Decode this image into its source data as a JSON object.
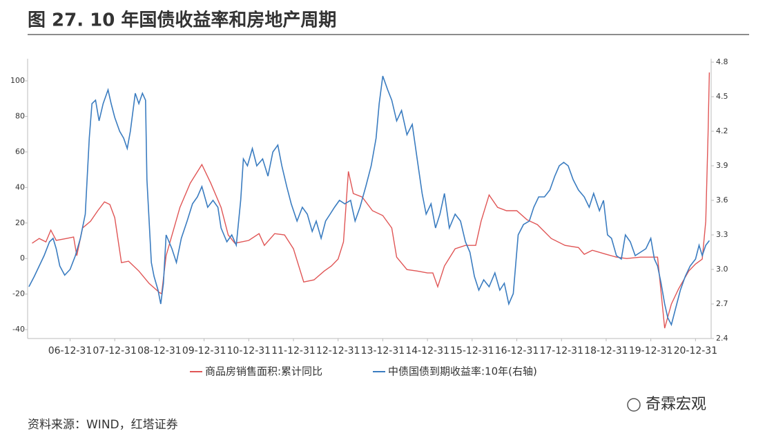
{
  "title": "图 27. 10 年国债收益率和房地产周期",
  "source": "资料来源：WIND，红塔证券",
  "watermark": "奇霖宏观",
  "chart_data": {
    "type": "line",
    "xlim": [
      2006.05,
      2021.35
    ],
    "xticks": [
      {
        "value": 2007.0,
        "label": "06-12-31"
      },
      {
        "value": 2008.0,
        "label": "07-12-31"
      },
      {
        "value": 2009.0,
        "label": "08-12-31"
      },
      {
        "value": 2010.0,
        "label": "09-12-31"
      },
      {
        "value": 2011.0,
        "label": "10-12-31"
      },
      {
        "value": 2012.0,
        "label": "11-12-31"
      },
      {
        "value": 2013.0,
        "label": "12-12-31"
      },
      {
        "value": 2014.0,
        "label": "13-12-31"
      },
      {
        "value": 2015.0,
        "label": "14-12-31"
      },
      {
        "value": 2016.0,
        "label": "15-12-31"
      },
      {
        "value": 2017.0,
        "label": "16-12-31"
      },
      {
        "value": 2018.0,
        "label": "17-12-31"
      },
      {
        "value": 2019.0,
        "label": "18-12-31"
      },
      {
        "value": 2020.0,
        "label": "19-12-31"
      },
      {
        "value": 2021.0,
        "label": "20-12-31"
      }
    ],
    "ylim": [
      -45,
      110.5
    ],
    "yticks": [
      -40,
      -20,
      0,
      20,
      40,
      60,
      80,
      100
    ],
    "y2lim": [
      2.4,
      4.8
    ],
    "y2ticks": [
      2.4,
      2.7,
      {
        "value": 3,
        "label": "3.0"
      },
      3.3,
      3.6,
      3.9,
      4.2,
      4.5,
      4.8
    ],
    "series": [
      {
        "name": "商品房销售面积:累计同比",
        "color": "#e05555",
        "x": [
          2006.15,
          2006.31,
          2006.46,
          2006.57,
          2006.69,
          2006.92,
          2007.08,
          2007.15,
          2007.28,
          2007.46,
          2007.62,
          2007.77,
          2007.89,
          2008.0,
          2008.15,
          2008.31,
          2008.54,
          2008.77,
          2009.0,
          2009.05,
          2009.15,
          2009.46,
          2009.69,
          2009.95,
          2010.15,
          2010.38,
          2010.54,
          2010.69,
          2011.0,
          2011.23,
          2011.35,
          2011.58,
          2011.8,
          2012.0,
          2012.23,
          2012.46,
          2012.69,
          2012.85,
          2013.0,
          2013.12,
          2013.23,
          2013.34,
          2013.54,
          2013.77,
          2014.0,
          2014.2,
          2014.31,
          2014.54,
          2014.77,
          2015.0,
          2015.12,
          2015.23,
          2015.38,
          2015.62,
          2015.85,
          2016.08,
          2016.2,
          2016.38,
          2016.57,
          2016.77,
          2017.0,
          2017.23,
          2017.46,
          2017.77,
          2018.08,
          2018.38,
          2018.51,
          2018.69,
          2019.0,
          2019.23,
          2019.46,
          2019.77,
          2020.15,
          2020.31,
          2020.46,
          2020.62,
          2020.85,
          2021.0,
          2021.15,
          2021.23,
          2021.28,
          2021.31
        ],
        "values": [
          8.6,
          11.3,
          9.4,
          16.0,
          10.2,
          11.3,
          12.1,
          1.6,
          17.2,
          21.0,
          26.9,
          31.9,
          30.4,
          23.0,
          -2.3,
          -1.5,
          -7.0,
          -14.0,
          -19.1,
          -19.8,
          1.6,
          28.8,
          42.4,
          52.9,
          42.4,
          28.8,
          13.3,
          8.6,
          10.2,
          14.0,
          7.4,
          14.0,
          13.3,
          5.5,
          -13.2,
          -12.0,
          -7.0,
          -4.2,
          -0.3,
          9.4,
          49.0,
          36.6,
          34.6,
          26.9,
          24.2,
          17.2,
          0.8,
          -6.2,
          -7.0,
          -8.1,
          -8.1,
          -15.9,
          -4.2,
          5.5,
          7.4,
          7.4,
          21.0,
          35.8,
          28.8,
          26.9,
          26.9,
          21.8,
          19.1,
          11.3,
          7.4,
          6.2,
          2.4,
          4.7,
          2.4,
          0.8,
          0.0,
          0.8,
          0.8,
          -39.2,
          -25.6,
          -17.1,
          -7.0,
          -3.1,
          -0.3,
          21.0,
          69.7,
          104.7
        ]
      },
      {
        "name": "中债国债到期收益率:10年(右轴)",
        "color": "#3a7cc0",
        "axis": "y2",
        "x": [
          2006.08,
          2006.2,
          2006.31,
          2006.42,
          2006.54,
          2006.62,
          2006.69,
          2006.77,
          2006.88,
          2007.0,
          2007.12,
          2007.23,
          2007.34,
          2007.43,
          2007.49,
          2007.57,
          2007.65,
          2007.74,
          2007.85,
          2007.92,
          2008.0,
          2008.11,
          2008.2,
          2008.28,
          2008.35,
          2008.46,
          2008.54,
          2008.62,
          2008.69,
          2008.72,
          2008.82,
          2008.88,
          2008.97,
          2009.03,
          2009.09,
          2009.15,
          2009.28,
          2009.38,
          2009.49,
          2009.62,
          2009.74,
          2009.85,
          2009.95,
          2010.08,
          2010.2,
          2010.31,
          2010.38,
          2010.51,
          2010.62,
          2010.72,
          2010.82,
          2010.88,
          2010.97,
          2011.08,
          2011.18,
          2011.31,
          2011.43,
          2011.54,
          2011.65,
          2011.74,
          2011.85,
          2011.95,
          2012.08,
          2012.2,
          2012.31,
          2012.42,
          2012.51,
          2012.62,
          2012.72,
          2012.82,
          2012.92,
          2013.03,
          2013.15,
          2013.28,
          2013.38,
          2013.49,
          2013.62,
          2013.74,
          2013.85,
          2013.92,
          2014.0,
          2014.11,
          2014.2,
          2014.31,
          2014.42,
          2014.54,
          2014.66,
          2014.77,
          2014.88,
          2014.97,
          2015.08,
          2015.18,
          2015.28,
          2015.38,
          2015.49,
          2015.62,
          2015.74,
          2015.85,
          2015.95,
          2016.05,
          2016.15,
          2016.26,
          2016.38,
          2016.51,
          2016.62,
          2016.72,
          2016.82,
          2016.92,
          2017.03,
          2017.15,
          2017.28,
          2017.38,
          2017.49,
          2017.62,
          2017.74,
          2017.85,
          2017.95,
          2018.05,
          2018.15,
          2018.26,
          2018.38,
          2018.51,
          2018.62,
          2018.72,
          2018.85,
          2018.94,
          2019.03,
          2019.12,
          2019.23,
          2019.34,
          2019.43,
          2019.54,
          2019.65,
          2019.77,
          2019.89,
          2020.0,
          2020.08,
          2020.15,
          2020.23,
          2020.31,
          2020.38,
          2020.46,
          2020.54,
          2020.66,
          2020.77,
          2020.88,
          2021.0,
          2021.08,
          2021.15,
          2021.23,
          2021.31
        ],
        "values": [
          2.85,
          2.94,
          3.03,
          3.12,
          3.24,
          3.27,
          3.18,
          3.03,
          2.95,
          3.0,
          3.12,
          3.27,
          3.48,
          4.14,
          4.44,
          4.47,
          4.29,
          4.44,
          4.56,
          4.44,
          4.32,
          4.2,
          4.14,
          4.05,
          4.2,
          4.53,
          4.44,
          4.53,
          4.47,
          3.78,
          3.06,
          2.94,
          2.82,
          2.7,
          2.88,
          3.3,
          3.18,
          3.06,
          3.27,
          3.42,
          3.57,
          3.63,
          3.72,
          3.54,
          3.6,
          3.54,
          3.36,
          3.24,
          3.3,
          3.21,
          3.6,
          3.96,
          3.9,
          4.05,
          3.9,
          3.96,
          3.81,
          4.02,
          4.08,
          3.9,
          3.72,
          3.57,
          3.42,
          3.54,
          3.48,
          3.33,
          3.42,
          3.27,
          3.42,
          3.48,
          3.54,
          3.6,
          3.57,
          3.6,
          3.42,
          3.54,
          3.72,
          3.9,
          4.14,
          4.44,
          4.68,
          4.56,
          4.47,
          4.29,
          4.38,
          4.17,
          4.26,
          3.96,
          3.66,
          3.48,
          3.57,
          3.36,
          3.48,
          3.66,
          3.36,
          3.48,
          3.42,
          3.24,
          3.15,
          2.94,
          2.82,
          2.91,
          2.85,
          2.97,
          2.82,
          2.88,
          2.7,
          2.79,
          3.3,
          3.39,
          3.42,
          3.54,
          3.63,
          3.63,
          3.69,
          3.81,
          3.9,
          3.93,
          3.9,
          3.78,
          3.69,
          3.63,
          3.54,
          3.66,
          3.51,
          3.6,
          3.3,
          3.27,
          3.12,
          3.09,
          3.3,
          3.24,
          3.12,
          3.15,
          3.18,
          3.27,
          3.09,
          3.03,
          2.88,
          2.7,
          2.58,
          2.52,
          2.64,
          2.82,
          2.94,
          3.03,
          3.09,
          3.21,
          3.12,
          3.21,
          3.25
        ]
      }
    ]
  }
}
